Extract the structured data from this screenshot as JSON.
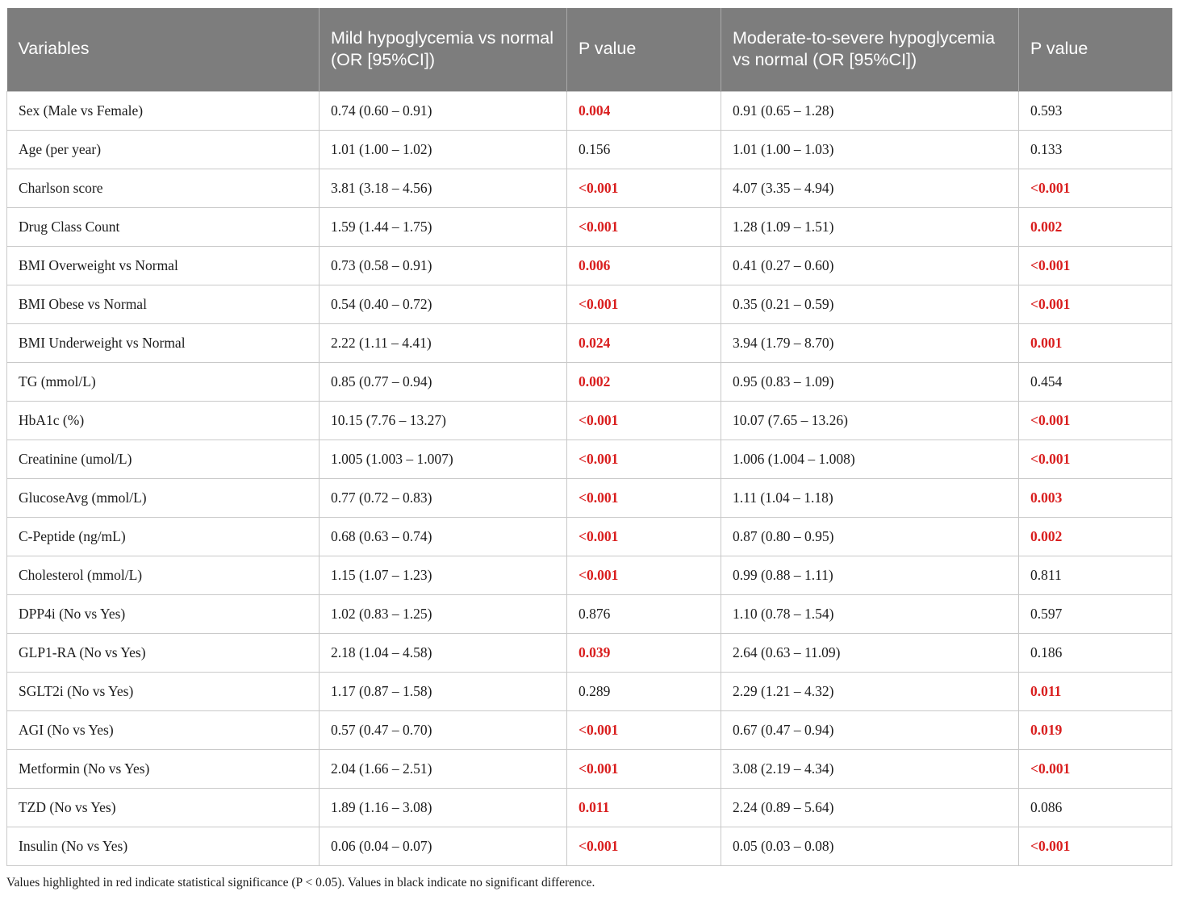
{
  "colors": {
    "header_bg": "#7d7d7d",
    "significant_red": "#d91e1e",
    "body_text": "#1c1c1c",
    "grid_line": "#c9c9c9"
  },
  "table": {
    "columns": [
      "Variables",
      "Mild hypoglycemia vs normal (OR [95%CI])",
      "P value",
      "Moderate-to-severe hypoglycemia vs normal (OR [95%CI])",
      "P value"
    ],
    "rows": [
      {
        "variable": "Sex (Male vs Female)",
        "mild_or": "0.74 (0.60 – 0.91)",
        "mild_p": "0.004",
        "mild_sig": true,
        "mod_or": "0.91 (0.65 – 1.28)",
        "mod_p": "0.593",
        "mod_sig": false
      },
      {
        "variable": "Age (per year)",
        "mild_or": "1.01 (1.00 – 1.02)",
        "mild_p": "0.156",
        "mild_sig": false,
        "mod_or": "1.01 (1.00 – 1.03)",
        "mod_p": "0.133",
        "mod_sig": false
      },
      {
        "variable": "Charlson score",
        "mild_or": "3.81 (3.18 – 4.56)",
        "mild_p": "<0.001",
        "mild_sig": true,
        "mod_or": "4.07 (3.35 – 4.94)",
        "mod_p": "<0.001",
        "mod_sig": true
      },
      {
        "variable": "Drug Class Count",
        "mild_or": "1.59 (1.44 – 1.75)",
        "mild_p": "<0.001",
        "mild_sig": true,
        "mod_or": "1.28 (1.09 – 1.51)",
        "mod_p": "0.002",
        "mod_sig": true
      },
      {
        "variable": "BMI Overweight vs Normal",
        "mild_or": "0.73 (0.58 – 0.91)",
        "mild_p": "0.006",
        "mild_sig": true,
        "mod_or": "0.41 (0.27 – 0.60)",
        "mod_p": "<0.001",
        "mod_sig": true
      },
      {
        "variable": "BMI Obese vs Normal",
        "mild_or": "0.54 (0.40 – 0.72)",
        "mild_p": "<0.001",
        "mild_sig": true,
        "mod_or": "0.35 (0.21 – 0.59)",
        "mod_p": "<0.001",
        "mod_sig": true
      },
      {
        "variable": "BMI Underweight vs Normal",
        "mild_or": "2.22 (1.11 – 4.41)",
        "mild_p": "0.024",
        "mild_sig": true,
        "mod_or": "3.94 (1.79 – 8.70)",
        "mod_p": "0.001",
        "mod_sig": true
      },
      {
        "variable": "TG (mmol/L)",
        "mild_or": "0.85 (0.77 – 0.94)",
        "mild_p": "0.002",
        "mild_sig": true,
        "mod_or": "0.95 (0.83 – 1.09)",
        "mod_p": "0.454",
        "mod_sig": false
      },
      {
        "variable": "HbA1c (%)",
        "mild_or": "10.15 (7.76 – 13.27)",
        "mild_p": "<0.001",
        "mild_sig": true,
        "mod_or": "10.07 (7.65 – 13.26)",
        "mod_p": "<0.001",
        "mod_sig": true
      },
      {
        "variable": "Creatinine (umol/L)",
        "mild_or": "1.005 (1.003 – 1.007)",
        "mild_p": "<0.001",
        "mild_sig": true,
        "mod_or": "1.006 (1.004 – 1.008)",
        "mod_p": "<0.001",
        "mod_sig": true
      },
      {
        "variable": "GlucoseAvg (mmol/L)",
        "mild_or": "0.77 (0.72 – 0.83)",
        "mild_p": "<0.001",
        "mild_sig": true,
        "mod_or": "1.11 (1.04 – 1.18)",
        "mod_p": "0.003",
        "mod_sig": true
      },
      {
        "variable": "C-Peptide (ng/mL)",
        "mild_or": "0.68 (0.63 – 0.74)",
        "mild_p": "<0.001",
        "mild_sig": true,
        "mod_or": "0.87 (0.80 – 0.95)",
        "mod_p": "0.002",
        "mod_sig": true
      },
      {
        "variable": "Cholesterol (mmol/L)",
        "mild_or": "1.15 (1.07 – 1.23)",
        "mild_p": "<0.001",
        "mild_sig": true,
        "mod_or": "0.99 (0.88 – 1.11)",
        "mod_p": "0.811",
        "mod_sig": false
      },
      {
        "variable": "DPP4i (No vs Yes)",
        "mild_or": "1.02 (0.83 – 1.25)",
        "mild_p": "0.876",
        "mild_sig": false,
        "mod_or": "1.10 (0.78 – 1.54)",
        "mod_p": "0.597",
        "mod_sig": false
      },
      {
        "variable": "GLP1-RA (No vs Yes)",
        "mild_or": "2.18 (1.04 – 4.58)",
        "mild_p": "0.039",
        "mild_sig": true,
        "mod_or": "2.64 (0.63 – 11.09)",
        "mod_p": "0.186",
        "mod_sig": false
      },
      {
        "variable": "SGLT2i (No vs Yes)",
        "mild_or": "1.17 (0.87 – 1.58)",
        "mild_p": "0.289",
        "mild_sig": false,
        "mod_or": "2.29 (1.21 – 4.32)",
        "mod_p": "0.011",
        "mod_sig": true
      },
      {
        "variable": "AGI (No vs Yes)",
        "mild_or": "0.57 (0.47 – 0.70)",
        "mild_p": "<0.001",
        "mild_sig": true,
        "mod_or": "0.67 (0.47 – 0.94)",
        "mod_p": "0.019",
        "mod_sig": true
      },
      {
        "variable": "Metformin (No vs Yes)",
        "mild_or": "2.04 (1.66 – 2.51)",
        "mild_p": "<0.001",
        "mild_sig": true,
        "mod_or": "3.08 (2.19 – 4.34)",
        "mod_p": "<0.001",
        "mod_sig": true
      },
      {
        "variable": "TZD (No vs Yes)",
        "mild_or": "1.89 (1.16 – 3.08)",
        "mild_p": "0.011",
        "mild_sig": true,
        "mod_or": "2.24 (0.89 – 5.64)",
        "mod_p": "0.086",
        "mod_sig": false
      },
      {
        "variable": "Insulin (No vs Yes)",
        "mild_or": "0.06 (0.04 – 0.07)",
        "mild_p": "<0.001",
        "mild_sig": true,
        "mod_or": "0.05 (0.03 – 0.08)",
        "mod_p": "<0.001",
        "mod_sig": true
      }
    ]
  },
  "footnote": "Values highlighted in red indicate statistical significance (P < 0.05). Values in black indicate no significant difference."
}
